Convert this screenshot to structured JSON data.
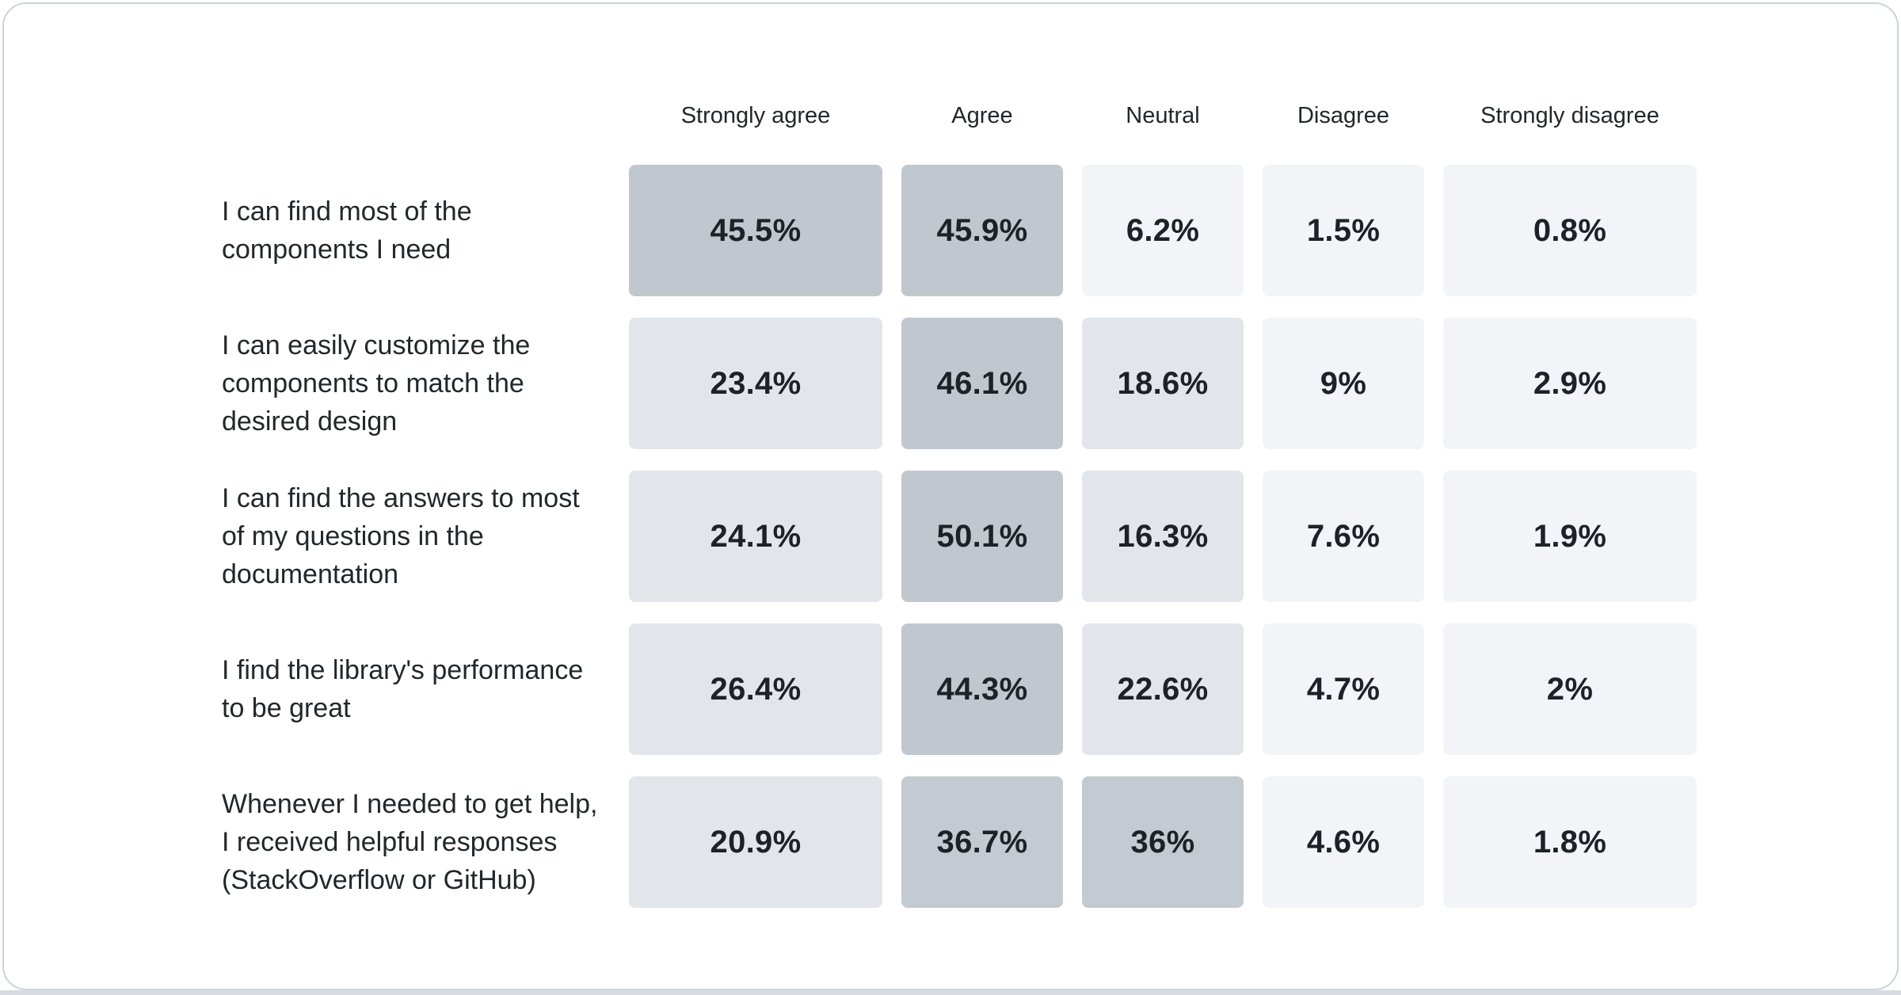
{
  "chart_data": {
    "type": "heatmap",
    "title": "",
    "columns": [
      "Strongly agree",
      "Agree",
      "Neutral",
      "Disagree",
      "Strongly disagree"
    ],
    "rows": [
      {
        "label": "I can find most of the\ncomponents I need",
        "values": [
          45.5,
          45.9,
          6.2,
          1.5,
          0.8
        ],
        "cells": [
          {
            "text": "45.5%",
            "color": "#c1c7ce"
          },
          {
            "text": "45.9%",
            "color": "#c1c7ce"
          },
          {
            "text": "6.2%",
            "color": "#f2f4f7"
          },
          {
            "text": "1.5%",
            "color": "#f2f4f7"
          },
          {
            "text": "0.8%",
            "color": "#f2f4f7"
          }
        ]
      },
      {
        "label": "I can easily customize the\ncomponents to match the\ndesired design",
        "values": [
          23.4,
          46.1,
          18.6,
          9,
          2.9
        ],
        "cells": [
          {
            "text": "23.4%",
            "color": "#e2e6ea"
          },
          {
            "text": "46.1%",
            "color": "#c1c7ce"
          },
          {
            "text": "18.6%",
            "color": "#e2e6ea"
          },
          {
            "text": "9%",
            "color": "#f2f4f7"
          },
          {
            "text": "2.9%",
            "color": "#f2f4f7"
          }
        ]
      },
      {
        "label": "I can find the answers to most\nof my questions in the\ndocumentation",
        "values": [
          24.1,
          50.1,
          16.3,
          7.6,
          1.9
        ],
        "cells": [
          {
            "text": "24.1%",
            "color": "#e2e6ea"
          },
          {
            "text": "50.1%",
            "color": "#c1c7ce"
          },
          {
            "text": "16.3%",
            "color": "#e2e6ea"
          },
          {
            "text": "7.6%",
            "color": "#f2f4f7"
          },
          {
            "text": "1.9%",
            "color": "#f2f4f7"
          }
        ]
      },
      {
        "label": "I find the library's performance\nto be great",
        "values": [
          26.4,
          44.3,
          22.6,
          4.7,
          2
        ],
        "cells": [
          {
            "text": "26.4%",
            "color": "#e2e6ea"
          },
          {
            "text": "44.3%",
            "color": "#c1c7ce"
          },
          {
            "text": "22.6%",
            "color": "#e2e6ea"
          },
          {
            "text": "4.7%",
            "color": "#f2f4f7"
          },
          {
            "text": "2%",
            "color": "#f2f4f7"
          }
        ]
      },
      {
        "label": "Whenever I needed to get help,\nI received helpful responses\n(StackOverflow or GitHub)",
        "values": [
          20.9,
          36.7,
          36,
          4.6,
          1.8
        ],
        "cells": [
          {
            "text": "20.9%",
            "color": "#e2e6ea"
          },
          {
            "text": "36.7%",
            "color": "#c4cad1"
          },
          {
            "text": "36%",
            "color": "#c4cad1"
          },
          {
            "text": "4.6%",
            "color": "#f2f4f7"
          },
          {
            "text": "1.8%",
            "color": "#f2f4f7"
          }
        ]
      }
    ],
    "color_scale": {
      "low_color": "#f2f4f7",
      "mid_color": "#e2e6ea",
      "high_color": "#c1c7ce",
      "meaning": "darker cell = higher percentage"
    },
    "layout": {
      "legend": "none",
      "grid": "off",
      "value_labels": "centered in cells"
    }
  },
  "ui": {
    "card_background": "#ffffff",
    "card_border_color": "#ced3d8",
    "bottom_edge_color": "#d8dbdf",
    "text_color": "#21272a"
  }
}
